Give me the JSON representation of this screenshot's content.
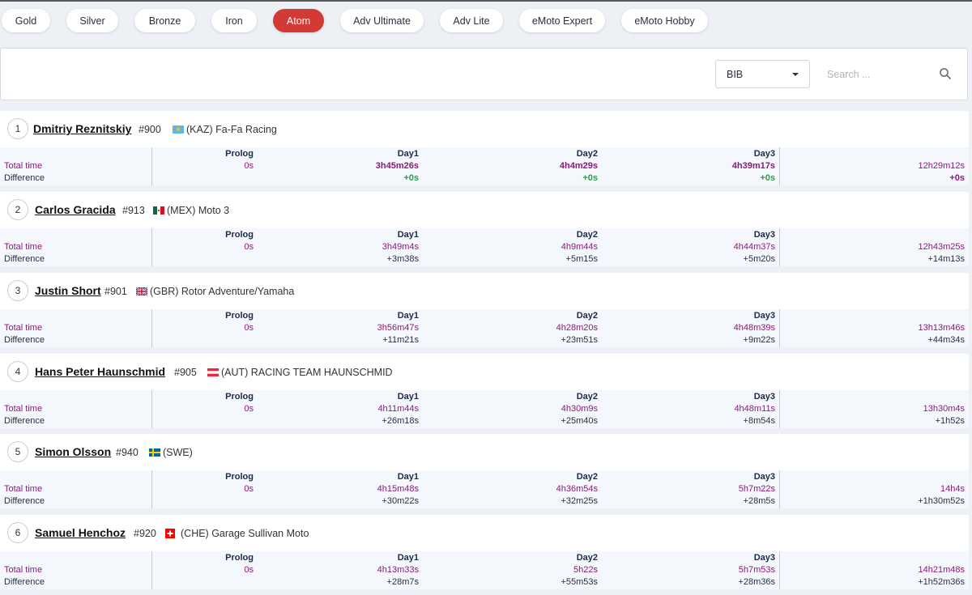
{
  "tabs": [
    {
      "label": "Gold",
      "active": false
    },
    {
      "label": "Silver",
      "active": false
    },
    {
      "label": "Bronze",
      "active": false
    },
    {
      "label": "Iron",
      "active": false
    },
    {
      "label": "Atom",
      "active": true
    },
    {
      "label": "Adv Ultimate",
      "active": false
    },
    {
      "label": "Adv Lite",
      "active": false
    },
    {
      "label": "eMoto Expert",
      "active": false
    },
    {
      "label": "eMoto Hobby",
      "active": false
    }
  ],
  "filter": {
    "select_value": "BIB",
    "search_placeholder": "Search ..."
  },
  "columns": [
    "Prolog",
    "Day1",
    "Day2",
    "Day3"
  ],
  "row_labels": {
    "total": "Total time",
    "difference": "Difference"
  },
  "colors": {
    "accent": "#d23a36",
    "time": "#8a1a7a",
    "leader_diff": "#2e9a48"
  },
  "riders": [
    {
      "rank": "1",
      "name": "Dmitriy Reznitskiy",
      "bib": "#900",
      "flag": "kaz-flag-icon",
      "team": "(KAZ) Fa-Fa Racing",
      "total": [
        "0s",
        "3h45m26s",
        "4h4m29s",
        "4h39m17s",
        "12h29m12s"
      ],
      "diff": [
        "",
        "+0s",
        "+0s",
        "+0s",
        "+0s"
      ]
    },
    {
      "rank": "2",
      "name": "Carlos Gracida",
      "bib": "#913",
      "flag": "mex-flag-icon",
      "team": "(MEX) Moto 3",
      "total": [
        "0s",
        "3h49m4s",
        "4h9m44s",
        "4h44m37s",
        "12h43m25s"
      ],
      "diff": [
        "",
        "+3m38s",
        "+5m15s",
        "+5m20s",
        "+14m13s"
      ]
    },
    {
      "rank": "3",
      "name": "Justin Short",
      "bib": "#901",
      "flag": "gbr-flag-icon",
      "team": "(GBR) Rotor Adventure/Yamaha",
      "total": [
        "0s",
        "3h56m47s",
        "4h28m20s",
        "4h48m39s",
        "13h13m46s"
      ],
      "diff": [
        "",
        "+11m21s",
        "+23m51s",
        "+9m22s",
        "+44m34s"
      ]
    },
    {
      "rank": "4",
      "name": "Hans Peter Haunschmid",
      "bib": "#905",
      "flag": "aut-flag-icon",
      "team": "(AUT) RACING TEAM HAUNSCHMID",
      "total": [
        "0s",
        "4h11m44s",
        "4h30m9s",
        "4h48m11s",
        "13h30m4s"
      ],
      "diff": [
        "",
        "+26m18s",
        "+25m40s",
        "+8m54s",
        "+1h52s"
      ]
    },
    {
      "rank": "5",
      "name": "Simon Olsson",
      "bib": "#940",
      "flag": "swe-flag-icon",
      "team": "(SWE)",
      "total": [
        "0s",
        "4h15m48s",
        "4h36m54s",
        "5h7m22s",
        "14h4s"
      ],
      "diff": [
        "",
        "+30m22s",
        "+32m25s",
        "+28m5s",
        "+1h30m52s"
      ]
    },
    {
      "rank": "6",
      "name": "Samuel Henchoz",
      "bib": "#920",
      "flag": "che-flag-icon",
      "team": "(CHE) Garage Sullivan Moto",
      "total": [
        "0s",
        "4h13m33s",
        "5h22s",
        "5h7m53s",
        "14h21m48s"
      ],
      "diff": [
        "",
        "+28m7s",
        "+55m53s",
        "+28m36s",
        "+1h52m36s"
      ]
    }
  ]
}
